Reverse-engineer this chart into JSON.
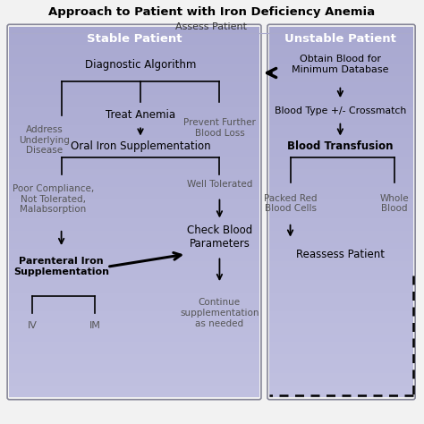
{
  "title": "Approach to Patient with Iron Deficiency Anemia",
  "assess_patient": "Assess Patient",
  "stable_header": "Stable Patient",
  "unstable_header": "Unstable Patient",
  "panel_left_color": "#b8b8d8",
  "panel_right_color": "#b8b8d8",
  "panel_edge_color": "#888899",
  "bg_color": "#f0f0f0",
  "nodes_left": {
    "diag_algo": "Diagnostic Algorithm",
    "address": "Address\nUnderlying\nDisease",
    "prevent": "Prevent Further\nBlood Loss",
    "treat": "Treat Anemia",
    "oral_iron": "Oral Iron Supplementation",
    "poor_comp": "Poor Compliance,\nNot Tolerated,\nMalabsorption",
    "well_tol": "Well Tolerated",
    "parenteral": "Parenteral Iron\nSupplementation",
    "check_blood": "Check Blood\nParameters",
    "iv": "IV",
    "im": "IM",
    "continue_txt": "Continue\nsupplementation\nas needed"
  },
  "nodes_right": {
    "obtain_blood": "Obtain Blood for\nMinimum Database",
    "blood_type": "Blood Type +/- Crossmatch",
    "blood_trans": "Blood Transfusion",
    "packed_red": "Packed Red\nBlood Cells",
    "whole_blood": "Whole\nBlood",
    "reassess": "Reassess Patient"
  }
}
